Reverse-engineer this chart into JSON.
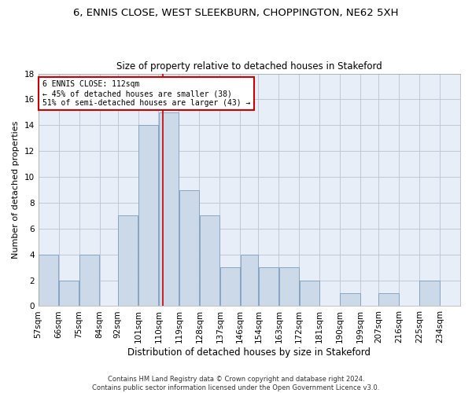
{
  "title1": "6, ENNIS CLOSE, WEST SLEEKBURN, CHOPPINGTON, NE62 5XH",
  "title2": "Size of property relative to detached houses in Stakeford",
  "xlabel": "Distribution of detached houses by size in Stakeford",
  "ylabel": "Number of detached properties",
  "footer": "Contains HM Land Registry data © Crown copyright and database right 2024.\nContains public sector information licensed under the Open Government Licence v3.0.",
  "bin_labels": [
    "57sqm",
    "66sqm",
    "75sqm",
    "84sqm",
    "92sqm",
    "101sqm",
    "110sqm",
    "119sqm",
    "128sqm",
    "137sqm",
    "146sqm",
    "154sqm",
    "163sqm",
    "172sqm",
    "181sqm",
    "190sqm",
    "199sqm",
    "207sqm",
    "216sqm",
    "225sqm",
    "234sqm"
  ],
  "bin_edges": [
    57,
    66,
    75,
    84,
    92,
    101,
    110,
    119,
    128,
    137,
    146,
    154,
    163,
    172,
    181,
    190,
    199,
    207,
    216,
    225,
    234,
    243
  ],
  "counts": [
    4,
    2,
    4,
    0,
    7,
    14,
    15,
    9,
    7,
    3,
    4,
    3,
    3,
    2,
    0,
    1,
    0,
    1,
    0,
    2,
    0
  ],
  "property_size": 112,
  "annotation_line1": "6 ENNIS CLOSE: 112sqm",
  "annotation_line2": "← 45% of detached houses are smaller (38)",
  "annotation_line3": "51% of semi-detached houses are larger (43) →",
  "bar_color": "#ccd9e8",
  "bar_edge_color": "#7a9dbf",
  "vline_color": "#cc0000",
  "annotation_box_color": "#ffffff",
  "annotation_box_edge": "#cc0000",
  "bg_color": "#ffffff",
  "plot_bg_color": "#e8eef8",
  "grid_color": "#c0c8d8",
  "ylim": [
    0,
    18
  ],
  "yticks": [
    0,
    2,
    4,
    6,
    8,
    10,
    12,
    14,
    16,
    18
  ],
  "title1_fontsize": 9.5,
  "title2_fontsize": 8.5,
  "xlabel_fontsize": 8.5,
  "ylabel_fontsize": 8,
  "tick_fontsize": 7.5,
  "annotation_fontsize": 7,
  "footer_fontsize": 6
}
